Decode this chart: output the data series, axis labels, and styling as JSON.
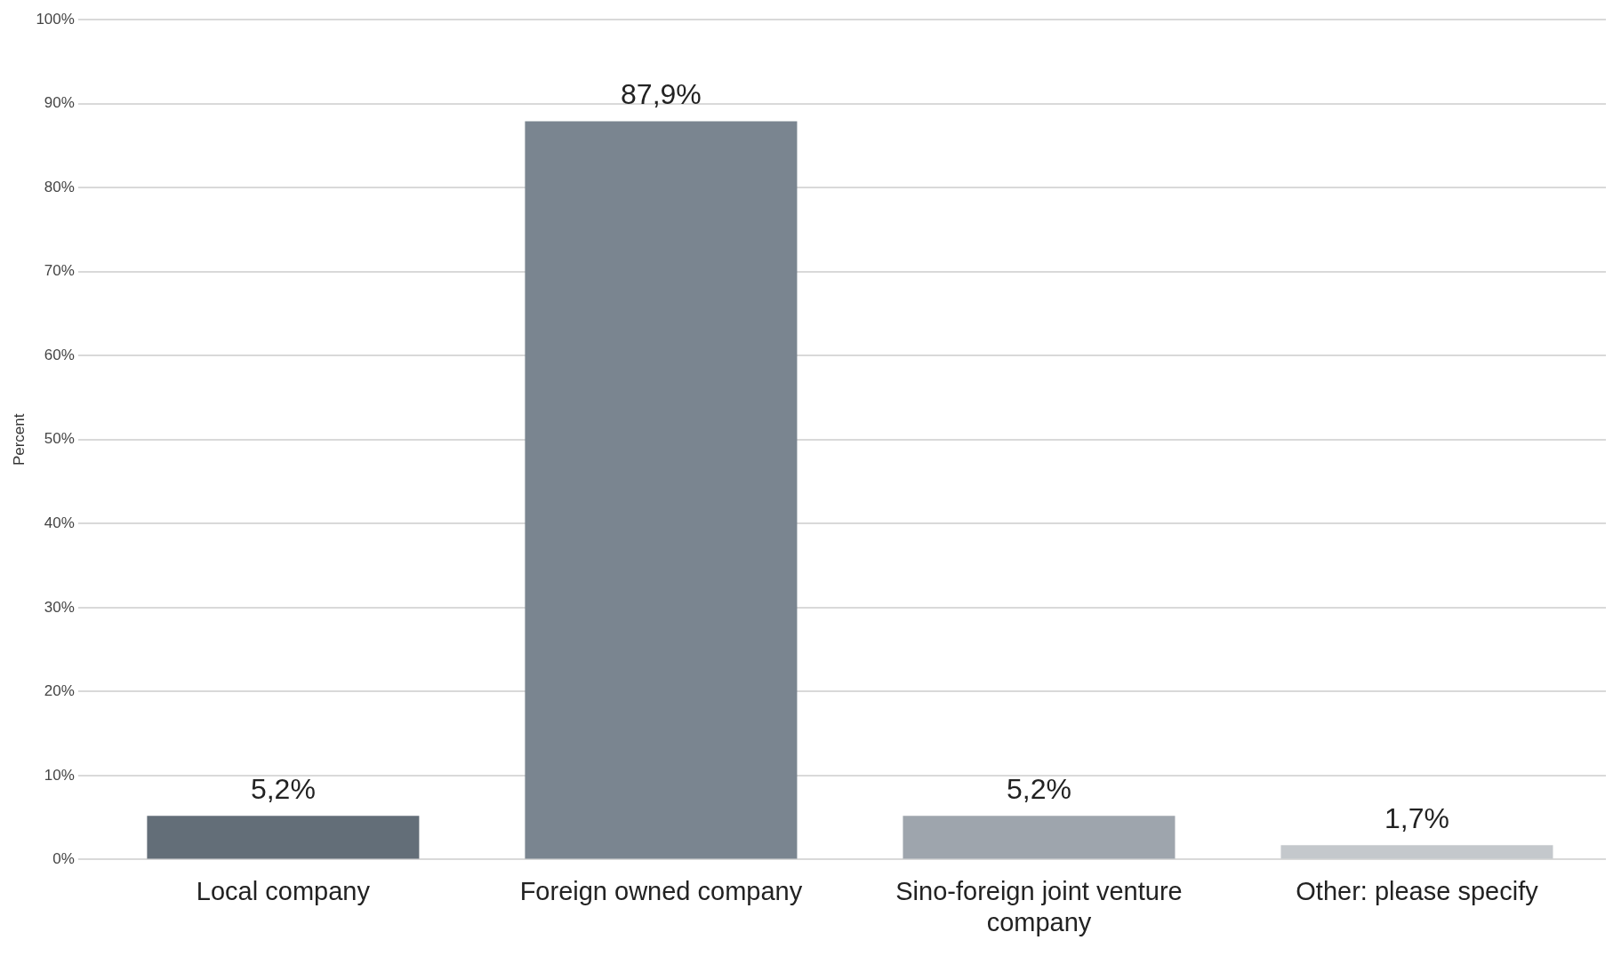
{
  "chart_data": {
    "type": "bar",
    "ylabel": "Percent",
    "categories": [
      "Local company",
      "Foreign owned company",
      "Sino-foreign joint venture company",
      "Other: please specify"
    ],
    "values": [
      5.2,
      87.9,
      5.2,
      1.7
    ],
    "colors": [
      "#636e78",
      "#7a8590",
      "#9ea5ad",
      "#c4c8cc"
    ],
    "value_labels": [
      "5,2%",
      "87,9%",
      "5,2%",
      "1,7%"
    ],
    "ylim": [
      0,
      100
    ],
    "yticks": [
      {
        "value": 0,
        "label": "0%"
      },
      {
        "value": 10,
        "label": "10%"
      },
      {
        "value": 20,
        "label": "20%"
      },
      {
        "value": 30,
        "label": "30%"
      },
      {
        "value": 40,
        "label": "40%"
      },
      {
        "value": 50,
        "label": "50%"
      },
      {
        "value": 60,
        "label": "60%"
      },
      {
        "value": 70,
        "label": "70%"
      },
      {
        "value": 80,
        "label": "80%"
      },
      {
        "value": 90,
        "label": "90%"
      },
      {
        "value": 100,
        "label": "100%"
      }
    ],
    "grid": "y",
    "legend": false
  }
}
